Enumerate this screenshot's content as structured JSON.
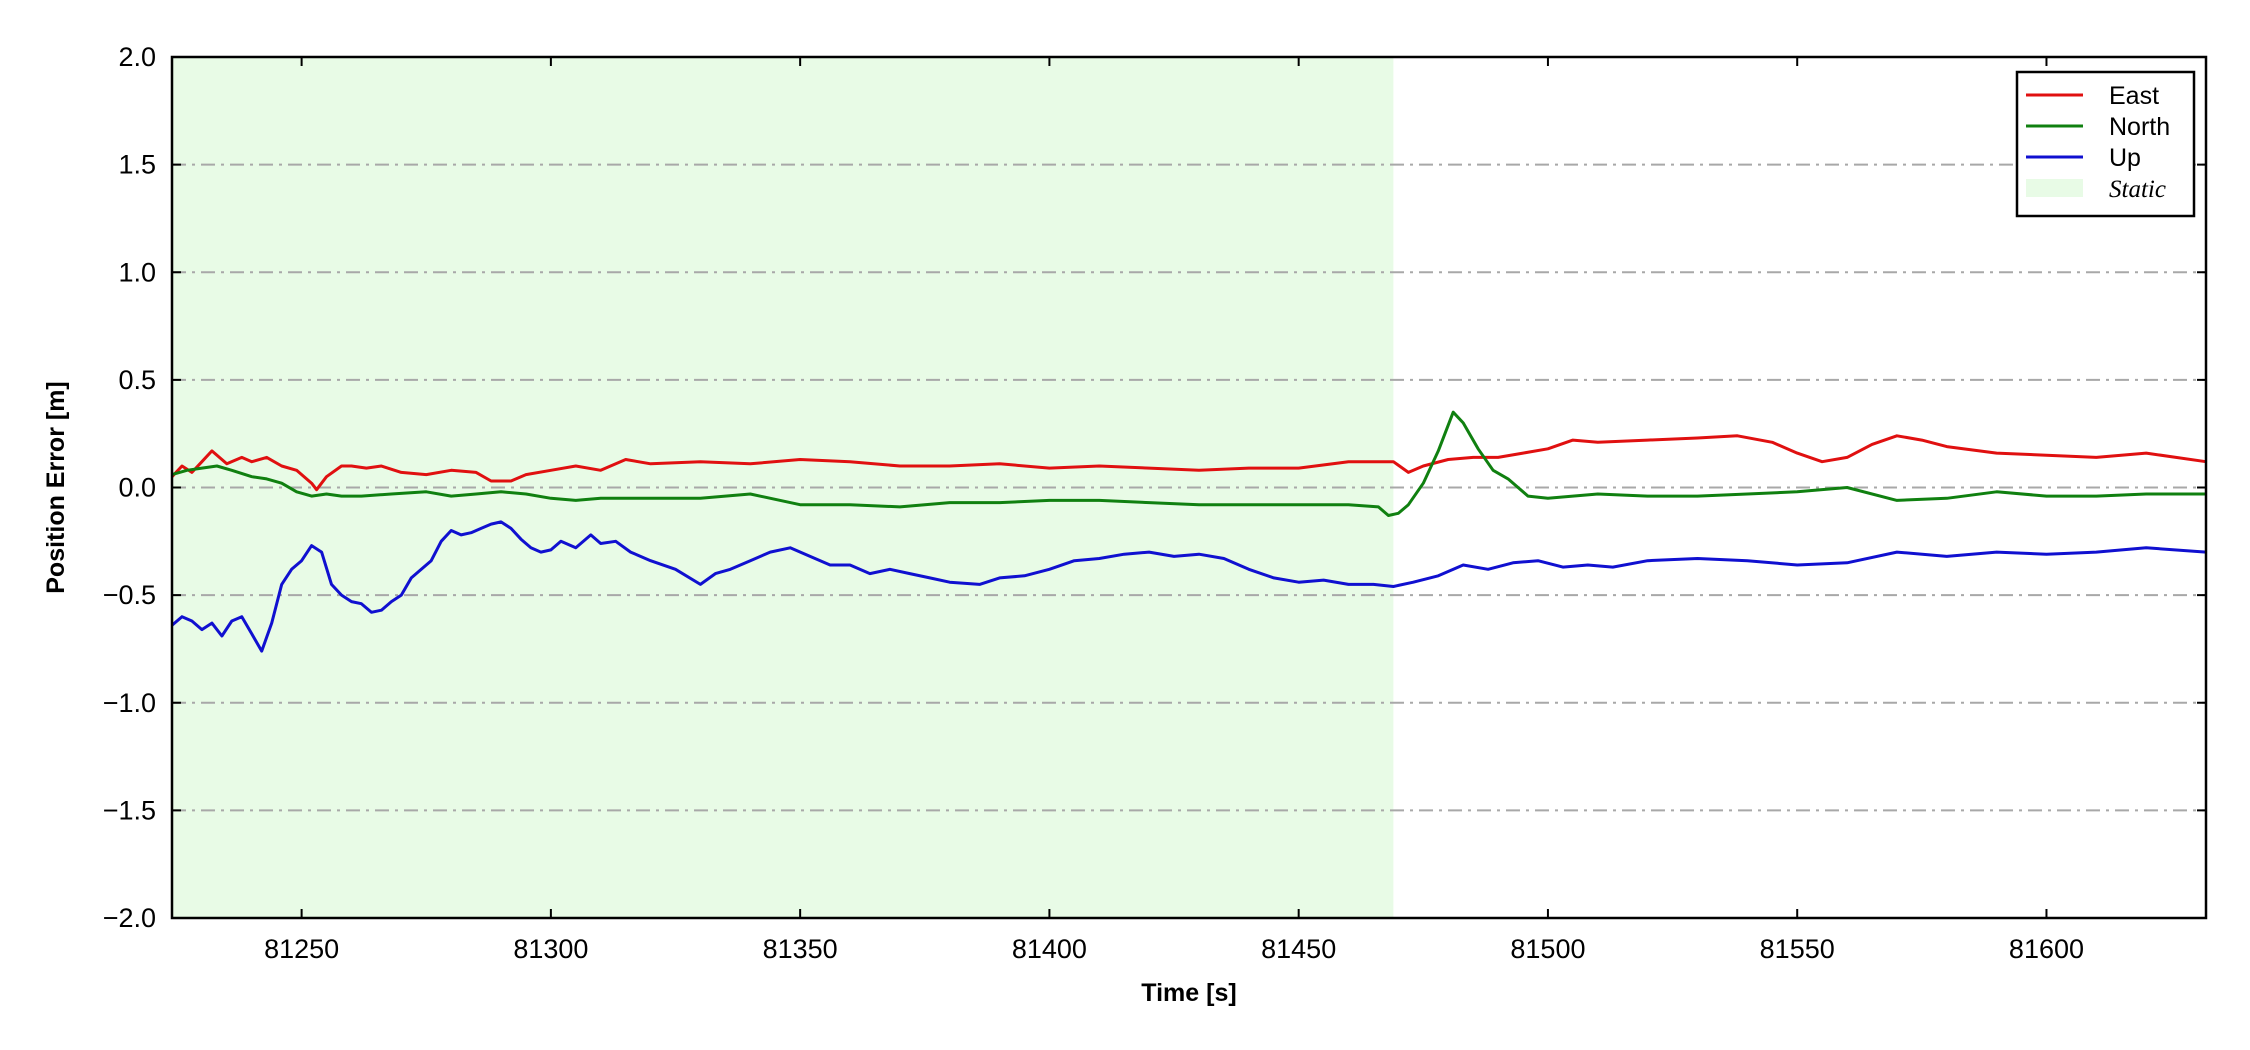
{
  "chart_data": {
    "type": "line",
    "title": "",
    "xlabel": "Time [s]",
    "ylabel": "Position Error [m]",
    "xlim": [
      81224,
      81632
    ],
    "ylim": [
      -2.0,
      2.0
    ],
    "x_ticks": [
      81250,
      81300,
      81350,
      81400,
      81450,
      81500,
      81550,
      81600
    ],
    "x_tick_labels": [
      "81250",
      "81300",
      "81350",
      "81400",
      "81450",
      "81500",
      "81550",
      "81600"
    ],
    "y_ticks": [
      -2.0,
      -1.5,
      -1.0,
      -0.5,
      0.0,
      0.5,
      1.0,
      1.5,
      2.0
    ],
    "y_tick_labels": [
      "−2.0",
      "−1.5",
      "−1.0",
      "−0.5",
      "0.0",
      "0.5",
      "1.0",
      "1.5",
      "2.0"
    ],
    "grid": "horizontal dash-dot gridlines",
    "legend_position": "top-right",
    "shaded_region": {
      "label": "Static",
      "x_start": 81224,
      "x_end": 81469,
      "color": "#e8fbe6"
    },
    "series": [
      {
        "name": "East",
        "color": "#e01010",
        "x": [
          81224,
          81226,
          81228,
          81230,
          81232,
          81235,
          81238,
          81240,
          81243,
          81246,
          81249,
          81252,
          81253,
          81255,
          81258,
          81260,
          81263,
          81266,
          81270,
          81275,
          81280,
          81285,
          81288,
          81292,
          81295,
          81300,
          81305,
          81310,
          81315,
          81320,
          81330,
          81340,
          81350,
          81360,
          81370,
          81380,
          81390,
          81400,
          81410,
          81420,
          81430,
          81440,
          81450,
          81460,
          81469,
          81472,
          81475,
          81480,
          81485,
          81490,
          81495,
          81500,
          81505,
          81510,
          81520,
          81530,
          81538,
          81545,
          81550,
          81555,
          81560,
          81565,
          81570,
          81575,
          81580,
          81590,
          81600,
          81610,
          81620,
          81632
        ],
        "values": [
          0.05,
          0.1,
          0.07,
          0.12,
          0.17,
          0.11,
          0.14,
          0.12,
          0.14,
          0.1,
          0.08,
          0.02,
          -0.01,
          0.05,
          0.1,
          0.1,
          0.09,
          0.1,
          0.07,
          0.06,
          0.08,
          0.07,
          0.03,
          0.03,
          0.06,
          0.08,
          0.1,
          0.08,
          0.13,
          0.11,
          0.12,
          0.11,
          0.13,
          0.12,
          0.1,
          0.1,
          0.11,
          0.09,
          0.1,
          0.09,
          0.08,
          0.09,
          0.09,
          0.12,
          0.12,
          0.07,
          0.1,
          0.13,
          0.14,
          0.14,
          0.16,
          0.18,
          0.22,
          0.21,
          0.22,
          0.23,
          0.24,
          0.21,
          0.16,
          0.12,
          0.14,
          0.2,
          0.24,
          0.22,
          0.19,
          0.16,
          0.15,
          0.14,
          0.16,
          0.12
        ]
      },
      {
        "name": "North",
        "color": "#108010",
        "x": [
          81224,
          81227,
          81230,
          81233,
          81236,
          81240,
          81243,
          81246,
          81249,
          81252,
          81255,
          81258,
          81262,
          81268,
          81275,
          81280,
          81285,
          81290,
          81295,
          81300,
          81305,
          81310,
          81320,
          81330,
          81340,
          81350,
          81360,
          81370,
          81380,
          81390,
          81400,
          81410,
          81420,
          81430,
          81440,
          81450,
          81460,
          81466,
          81468,
          81470,
          81472,
          81475,
          81478,
          81481,
          81483,
          81486,
          81489,
          81492,
          81496,
          81500,
          81510,
          81520,
          81530,
          81540,
          81550,
          81560,
          81570,
          81580,
          81590,
          81600,
          81610,
          81620,
          81632
        ],
        "values": [
          0.06,
          0.08,
          0.09,
          0.1,
          0.08,
          0.05,
          0.04,
          0.02,
          -0.02,
          -0.04,
          -0.03,
          -0.04,
          -0.04,
          -0.03,
          -0.02,
          -0.04,
          -0.03,
          -0.02,
          -0.03,
          -0.05,
          -0.06,
          -0.05,
          -0.05,
          -0.05,
          -0.03,
          -0.08,
          -0.08,
          -0.09,
          -0.07,
          -0.07,
          -0.06,
          -0.06,
          -0.07,
          -0.08,
          -0.08,
          -0.08,
          -0.08,
          -0.09,
          -0.13,
          -0.12,
          -0.08,
          0.02,
          0.17,
          0.35,
          0.3,
          0.18,
          0.08,
          0.04,
          -0.04,
          -0.05,
          -0.03,
          -0.04,
          -0.04,
          -0.03,
          -0.02,
          0.0,
          -0.06,
          -0.05,
          -0.02,
          -0.04,
          -0.04,
          -0.03,
          -0.03
        ]
      },
      {
        "name": "Up",
        "color": "#1010d0",
        "x": [
          81224,
          81226,
          81228,
          81230,
          81232,
          81234,
          81236,
          81238,
          81240,
          81242,
          81244,
          81246,
          81248,
          81250,
          81252,
          81254,
          81256,
          81258,
          81260,
          81262,
          81264,
          81266,
          81268,
          81270,
          81272,
          81274,
          81276,
          81278,
          81280,
          81282,
          81284,
          81286,
          81288,
          81290,
          81292,
          81294,
          81296,
          81298,
          81300,
          81302,
          81305,
          81308,
          81310,
          81313,
          81316,
          81320,
          81325,
          81330,
          81333,
          81336,
          81340,
          81344,
          81348,
          81352,
          81356,
          81360,
          81364,
          81368,
          81372,
          81376,
          81380,
          81386,
          81390,
          81395,
          81400,
          81405,
          81410,
          81415,
          81420,
          81425,
          81430,
          81435,
          81440,
          81445,
          81450,
          81455,
          81460,
          81465,
          81469,
          81473,
          81478,
          81483,
          81488,
          81493,
          81498,
          81503,
          81508,
          81513,
          81520,
          81530,
          81540,
          81550,
          81560,
          81570,
          81580,
          81590,
          81600,
          81610,
          81620,
          81632
        ],
        "values": [
          -0.64,
          -0.6,
          -0.62,
          -0.66,
          -0.63,
          -0.69,
          -0.62,
          -0.6,
          -0.68,
          -0.76,
          -0.63,
          -0.45,
          -0.38,
          -0.34,
          -0.27,
          -0.3,
          -0.45,
          -0.5,
          -0.53,
          -0.54,
          -0.58,
          -0.57,
          -0.53,
          -0.5,
          -0.42,
          -0.38,
          -0.34,
          -0.25,
          -0.2,
          -0.22,
          -0.21,
          -0.19,
          -0.17,
          -0.16,
          -0.19,
          -0.24,
          -0.28,
          -0.3,
          -0.29,
          -0.25,
          -0.28,
          -0.22,
          -0.26,
          -0.25,
          -0.3,
          -0.34,
          -0.38,
          -0.45,
          -0.4,
          -0.38,
          -0.34,
          -0.3,
          -0.28,
          -0.32,
          -0.36,
          -0.36,
          -0.4,
          -0.38,
          -0.4,
          -0.42,
          -0.44,
          -0.45,
          -0.42,
          -0.41,
          -0.38,
          -0.34,
          -0.33,
          -0.31,
          -0.3,
          -0.32,
          -0.31,
          -0.33,
          -0.38,
          -0.42,
          -0.44,
          -0.43,
          -0.45,
          -0.45,
          -0.46,
          -0.44,
          -0.41,
          -0.36,
          -0.38,
          -0.35,
          -0.34,
          -0.37,
          -0.36,
          -0.37,
          -0.34,
          -0.33,
          -0.34,
          -0.36,
          -0.35,
          -0.3,
          -0.32,
          -0.3,
          -0.31,
          -0.3,
          -0.28,
          -0.3
        ]
      }
    ]
  }
}
